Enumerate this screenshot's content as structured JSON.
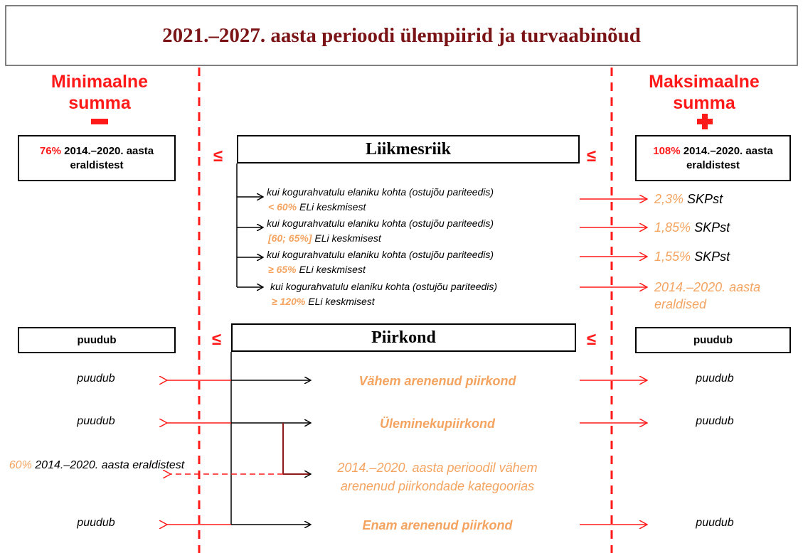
{
  "title": "2021.–2027. aasta perioodi ülempiirid ja turvaabinõud",
  "min_header": "Minimaalne summa",
  "max_header": "Maksimaalne summa",
  "min_box": {
    "highlight": "76%",
    "text": "2014.–2020. aasta eraldistest"
  },
  "max_box": {
    "highlight": "108%",
    "text": "2014.–2020. aasta eraldistest"
  },
  "leq_symbols": [
    "≤",
    "≤",
    "≤",
    "≤"
  ],
  "member_state": "Liikmesriik",
  "conditions": [
    {
      "prefix": "kui kogurahvatulu elaniku kohta (ostujõu pariteedis)",
      "threshold": "< 60%",
      "suffix": "ELi keskmisest",
      "cap_value": "2,3%",
      "cap_text": "SKPst"
    },
    {
      "prefix": "kui kogurahvatulu elaniku kohta (ostujõu pariteedis)",
      "threshold": "[60; 65%]",
      "suffix": "ELi keskmisest",
      "cap_value": "1,85%",
      "cap_text": "SKPst"
    },
    {
      "prefix": "kui kogurahvatulu elaniku kohta (ostujõu pariteedis)",
      "threshold": "≥ 65%",
      "suffix": "ELi keskmisest",
      "cap_value": "1,55%",
      "cap_text": "SKPst"
    },
    {
      "prefix": "kui kogurahvatulu elaniku kohta (ostujõu pariteedis)",
      "threshold": "≥ 120%",
      "suffix": "ELi keskmisest",
      "cap_value": "2014.–2020. aasta eraldised"
    }
  ],
  "region": "Piirkond",
  "region_min": "puudub",
  "region_max": "puudub",
  "categories": [
    {
      "min": "puudub",
      "name": "Vähem arenenud piirkond",
      "max": "puudub"
    },
    {
      "min": "puudub",
      "name": "Üleminekupiirkond",
      "max": "puudub"
    },
    {
      "min_highlight": "60%",
      "min_text": "2014.–2020. aasta eraldistest",
      "name": "2014.–2020. aasta perioodil vähem arenenud piirkondade kategoorias"
    },
    {
      "min": "puudub",
      "name": "Enam arenenud piirkond",
      "max": "puudub"
    }
  ]
}
